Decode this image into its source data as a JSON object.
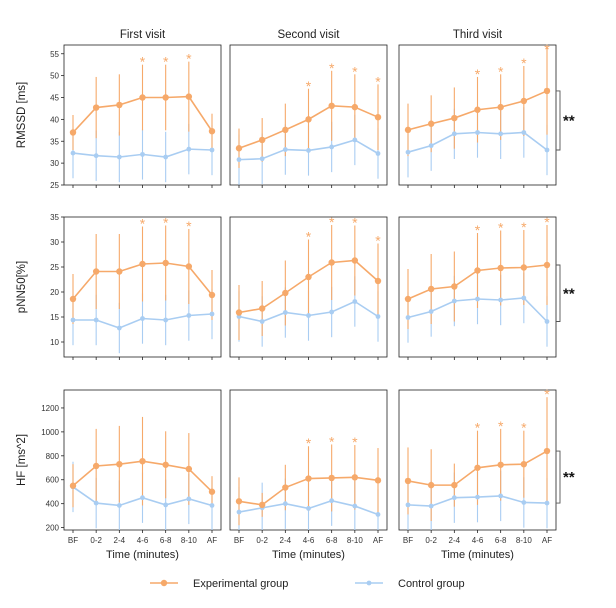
{
  "chart_data": {
    "type": "line",
    "column_titles": [
      "First visit",
      "Second visit",
      "Third visit"
    ],
    "categories": [
      "BF",
      "0-2",
      "2-4",
      "4-6",
      "6-8",
      "8-10",
      "AF"
    ],
    "xlabel": "Time (minutes)",
    "legend": [
      "Experimental group",
      "Control group"
    ],
    "colors": {
      "experimental": "#f6a96a",
      "control": "#a9cdf2"
    },
    "star_symbol": "*",
    "rows": [
      {
        "ylabel": "RMSSD [ms]",
        "ylim": [
          25,
          57
        ],
        "yticks": [
          "25",
          "30",
          "35",
          "40",
          "45",
          "50",
          "55"
        ],
        "sig_label": "**",
        "panels": [
          {
            "experimental": {
              "values": [
                37,
                42.7,
                43.3,
                45,
                45,
                45.2,
                37.3
              ],
              "err": [
                4,
                7,
                7,
                7.5,
                7.5,
                8,
                4
              ]
            },
            "control": {
              "values": [
                32.3,
                31.7,
                31.4,
                32,
                31.4,
                33.2,
                33
              ]
            },
            "stars": [
              3,
              4,
              5
            ]
          },
          {
            "experimental": {
              "values": [
                33.4,
                35.3,
                37.6,
                40,
                43.1,
                42.8,
                40.5
              ],
              "err": [
                4.5,
                5,
                6,
                7,
                8,
                7.5,
                7.5
              ]
            },
            "control": {
              "values": [
                30.8,
                31,
                33.1,
                32.9,
                33.7,
                35.3,
                32.2
              ]
            },
            "stars": [
              3,
              4,
              5,
              6
            ]
          },
          {
            "experimental": {
              "values": [
                37.6,
                39,
                40.3,
                42.2,
                42.8,
                44.2,
                46.5
              ],
              "err": [
                6,
                6.5,
                7,
                7.5,
                7.5,
                8,
                10
              ]
            },
            "control": {
              "values": [
                32.5,
                34,
                36.7,
                37,
                36.7,
                37,
                33
              ]
            },
            "stars": [
              3,
              4,
              5,
              6
            ]
          }
        ]
      },
      {
        "ylabel": "pNN50[%]",
        "ylim": [
          7,
          35
        ],
        "yticks": [
          "10",
          "15",
          "20",
          "25",
          "30",
          "35"
        ],
        "sig_label": "**",
        "panels": [
          {
            "experimental": {
              "values": [
                18.6,
                24.1,
                24.1,
                25.6,
                25.8,
                25.1,
                19.4
              ],
              "err": [
                5,
                7.5,
                7.5,
                7.5,
                7.5,
                7.5,
                5
              ]
            },
            "control": {
              "values": [
                14.4,
                14.4,
                12.8,
                14.7,
                14.4,
                15.3,
                15.6
              ]
            },
            "stars": [
              3,
              4,
              5
            ]
          },
          {
            "experimental": {
              "values": [
                15.9,
                16.7,
                19.8,
                23,
                25.9,
                26.3,
                22.2
              ],
              "err": [
                5.5,
                5.5,
                6.5,
                7.5,
                7.5,
                7,
                7.5
              ]
            },
            "control": {
              "values": [
                15.1,
                14.1,
                15.9,
                15.3,
                16,
                18.1,
                15.1
              ]
            },
            "stars": [
              3,
              4,
              5,
              6
            ]
          },
          {
            "experimental": {
              "values": [
                18.6,
                20.6,
                21.1,
                24.3,
                24.8,
                24.9,
                25.4
              ],
              "err": [
                6,
                7,
                7,
                7.5,
                7.5,
                7.5,
                8
              ]
            },
            "control": {
              "values": [
                14.9,
                16.1,
                18.2,
                18.6,
                18.4,
                18.8,
                14.1
              ]
            },
            "stars": [
              3,
              4,
              5,
              6
            ]
          }
        ]
      },
      {
        "ylabel": "HF [ms^2]",
        "ylim": [
          180,
          1350
        ],
        "yticks": [
          "200",
          "400",
          "600",
          "800",
          "1000",
          "1200"
        ],
        "sig_label": "**",
        "panels": [
          {
            "experimental": {
              "values": [
                550,
                715,
                730,
                755,
                725,
                690,
                500
              ],
              "err": [
                180,
                310,
                320,
                370,
                280,
                300,
                130
              ]
            },
            "control": {
              "values": [
                540,
                405,
                385,
                450,
                390,
                440,
                385
              ]
            },
            "stars": []
          },
          {
            "experimental": {
              "values": [
                420,
                390,
                535,
                610,
                615,
                620,
                595
              ],
              "err": [
                200,
                100,
                190,
                270,
                280,
                270,
                270
              ]
            },
            "control": {
              "values": [
                330,
                365,
                400,
                360,
                425,
                380,
                310
              ]
            },
            "stars": [
              3,
              4,
              5
            ]
          },
          {
            "experimental": {
              "values": [
                590,
                555,
                555,
                700,
                725,
                730,
                840
              ],
              "err": [
                280,
                300,
                180,
                310,
                300,
                280,
                450
              ]
            },
            "control": {
              "values": [
                390,
                380,
                450,
                455,
                465,
                410,
                405
              ]
            },
            "stars": [
              3,
              4,
              5,
              6
            ]
          }
        ]
      }
    ]
  }
}
